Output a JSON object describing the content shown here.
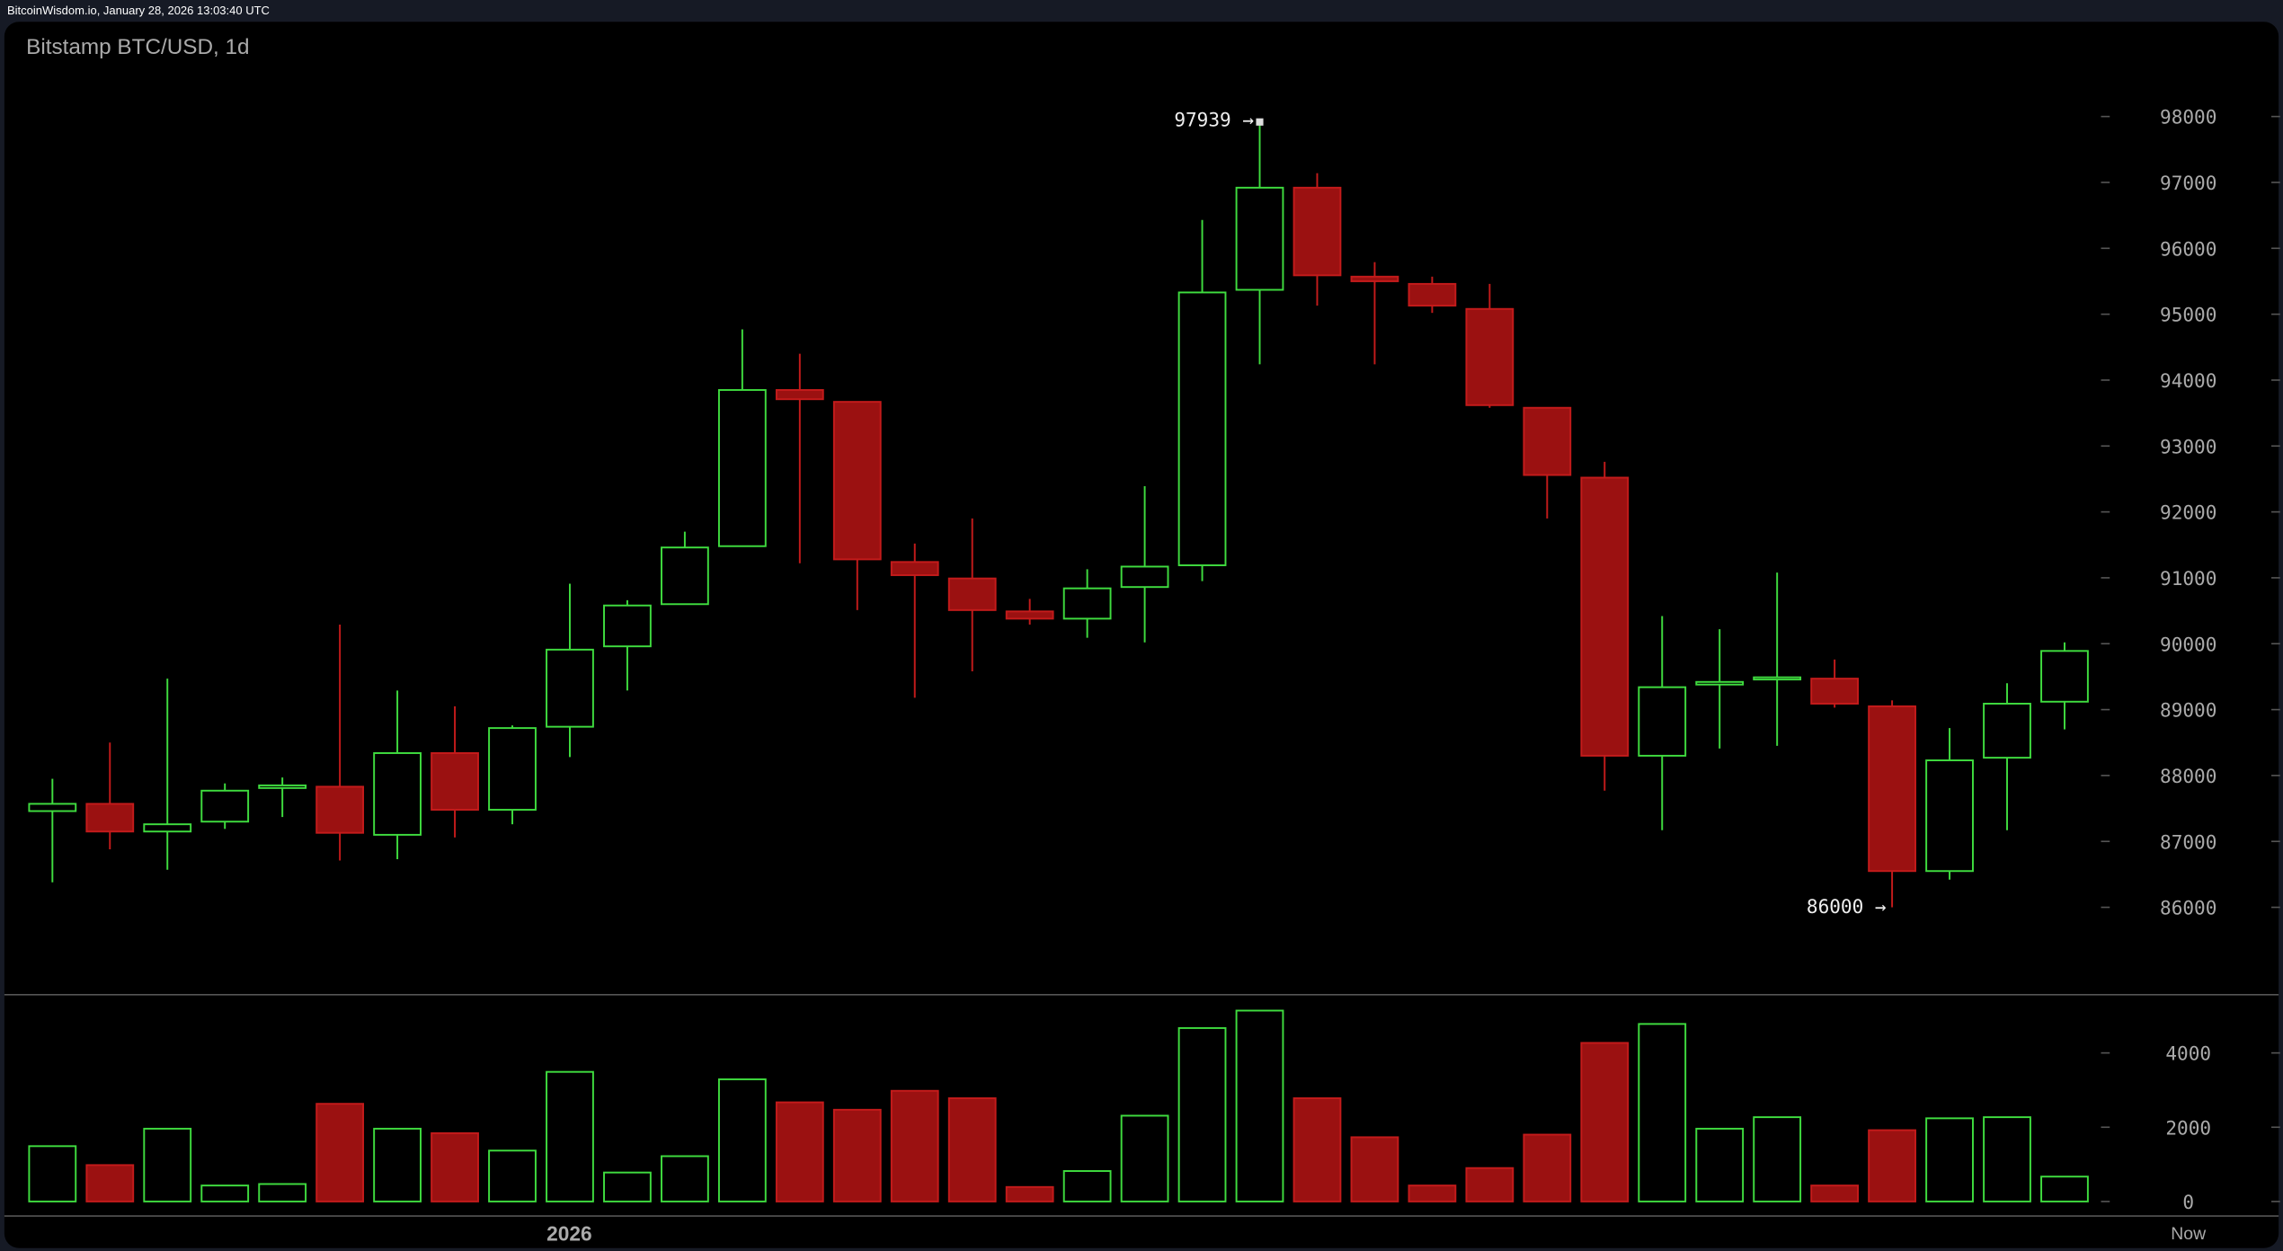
{
  "header": {
    "source_timestamp": "BitcoinWisdom.io, January 28, 2026 13:03:40 UTC"
  },
  "colors": {
    "up": "#3fdc3f",
    "down_fill": "#9b1111",
    "down_border": "#c41b1b",
    "background": "#000000",
    "frame": "#161a25"
  },
  "chart_data": {
    "type": "candlestick",
    "title": "Bitstamp BTC/USD, 1d",
    "ylim": [
      85000,
      98700
    ],
    "y_ticks": [
      "98000",
      "97000",
      "96000",
      "95000",
      "94000",
      "93000",
      "92000",
      "91000",
      "90000",
      "89000",
      "88000",
      "87000",
      "86000"
    ],
    "x_labels": {
      "year_label": "2026",
      "year_index": 9,
      "now_label": "Now"
    },
    "annotations": {
      "high": "97939 →",
      "high_index": 21,
      "low": "86000 →",
      "low_index": 32
    },
    "ohlc": [
      [
        87460,
        87950,
        86380,
        87570
      ],
      [
        87570,
        88500,
        86880,
        87150
      ],
      [
        87150,
        89470,
        86570,
        87260
      ],
      [
        87300,
        87880,
        87190,
        87770
      ],
      [
        87810,
        87970,
        87370,
        87850
      ],
      [
        87830,
        90290,
        86710,
        87130
      ],
      [
        87100,
        89290,
        86730,
        88340
      ],
      [
        88340,
        89050,
        87060,
        87480
      ],
      [
        87480,
        88760,
        87260,
        88720
      ],
      [
        88740,
        90910,
        88280,
        89910
      ],
      [
        89960,
        90660,
        89290,
        90580
      ],
      [
        90600,
        91700,
        90600,
        91460
      ],
      [
        91480,
        94770,
        91480,
        93850
      ],
      [
        93850,
        94400,
        91220,
        93710
      ],
      [
        93670,
        93670,
        90510,
        91280
      ],
      [
        91240,
        91520,
        89180,
        91040
      ],
      [
        90990,
        91900,
        89580,
        90510
      ],
      [
        90490,
        90680,
        90290,
        90380
      ],
      [
        90380,
        91130,
        90090,
        90840
      ],
      [
        90860,
        92390,
        90020,
        91170
      ],
      [
        91190,
        96430,
        90950,
        95330
      ],
      [
        95370,
        97939,
        94240,
        96920
      ],
      [
        96920,
        97140,
        95130,
        95590
      ],
      [
        95570,
        95790,
        94240,
        95500
      ],
      [
        95460,
        95570,
        95020,
        95130
      ],
      [
        95080,
        95460,
        93580,
        93620
      ],
      [
        93580,
        93580,
        91900,
        92560
      ],
      [
        92520,
        92760,
        87770,
        88300
      ],
      [
        88300,
        90420,
        87170,
        89340
      ],
      [
        89380,
        90220,
        88410,
        89420
      ],
      [
        89470,
        91080,
        88450,
        89490
      ],
      [
        89470,
        89760,
        89030,
        89090
      ],
      [
        89050,
        89140,
        86000,
        86550
      ],
      [
        86550,
        88720,
        86420,
        88230
      ],
      [
        88270,
        89400,
        87170,
        89090
      ],
      [
        89120,
        90020,
        88700,
        89890
      ]
    ],
    "volume": {
      "y_ticks": [
        "4000",
        "2000",
        "0"
      ],
      "ylim": [
        0,
        5400
      ],
      "values": [
        1490,
        980,
        1960,
        430,
        470,
        2630,
        1960,
        1840,
        1370,
        3490,
        780,
        1220,
        3290,
        2670,
        2470,
        2980,
        2780,
        390,
        820,
        2310,
        4670,
        5140,
        2780,
        1730,
        430,
        900,
        1800,
        4270,
        4780,
        1960,
        2270,
        430,
        1920,
        2240,
        2270,
        670
      ]
    }
  }
}
